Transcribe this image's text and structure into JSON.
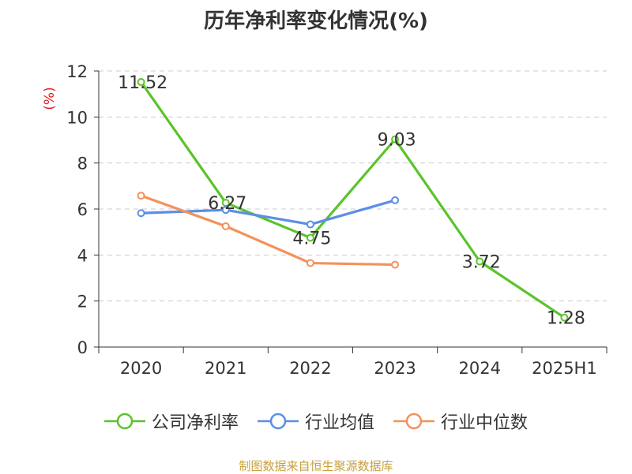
{
  "chart_data": {
    "type": "line",
    "title": "历年净利率变化情况(%)",
    "ylabel": "(%)",
    "xlabel": "",
    "categories": [
      "2020",
      "2021",
      "2022",
      "2023",
      "2024",
      "2025H1"
    ],
    "ylim": [
      0,
      12
    ],
    "yticks": [
      0,
      2,
      4,
      6,
      8,
      10,
      12
    ],
    "grid": true,
    "legend_position": "bottom",
    "series": [
      {
        "name": "公司净利率",
        "color": "#5ac42a",
        "values": [
          11.52,
          6.27,
          4.75,
          9.03,
          3.72,
          1.28
        ],
        "labels": [
          "11.52",
          "6.27",
          "4.75",
          "9.03",
          "3.72",
          "1.28"
        ]
      },
      {
        "name": "行业均值",
        "color": "#5b8ee6",
        "values": [
          5.82,
          5.96,
          5.33,
          6.38,
          null,
          null
        ]
      },
      {
        "name": "行业中位数",
        "color": "#f4915a",
        "values": [
          6.58,
          5.25,
          3.65,
          3.58,
          null,
          null
        ]
      }
    ]
  },
  "source_text": "制图数据来自恒生聚源数据库"
}
